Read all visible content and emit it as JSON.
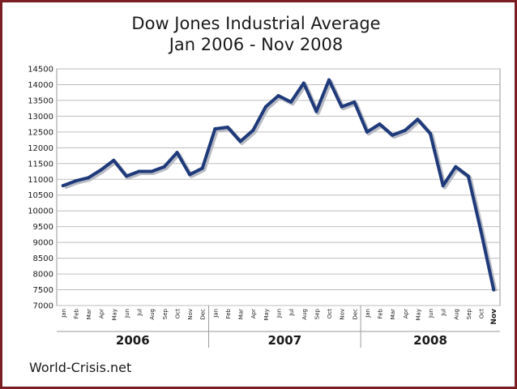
{
  "footer": "World-Crisis.net",
  "chart_data": {
    "type": "line",
    "title": "Dow Jones Industrial Average",
    "subtitle": "Jan 2006 - Nov 2008",
    "xlabel": "",
    "ylabel": "",
    "ylim": [
      7000,
      14500
    ],
    "yticks": [
      7000,
      7500,
      8000,
      8500,
      9000,
      9500,
      10000,
      10500,
      11000,
      11500,
      12000,
      12500,
      13000,
      13500,
      14000,
      14500
    ],
    "grid": true,
    "line_color": "#1f3a7a",
    "months": [
      "Jan",
      "Feb",
      "Mar",
      "Apr",
      "May",
      "Jun",
      "Jul",
      "Aug",
      "Sep",
      "Oct",
      "Nov",
      "Dec",
      "Jan",
      "Feb",
      "Mar",
      "Apr",
      "May",
      "Jun",
      "Jul",
      "Aug",
      "Sep",
      "Oct",
      "Nov",
      "Dec",
      "Jan",
      "Feb",
      "Mar",
      "Apr",
      "May",
      "Jun",
      "Jul",
      "Aug",
      "Sep",
      "Oct",
      "Nov"
    ],
    "years": [
      {
        "label": "2006",
        "months": 12
      },
      {
        "label": "2007",
        "months": 12
      },
      {
        "label": "2008",
        "months": 11
      }
    ],
    "series": [
      {
        "values": [
          10800,
          10950,
          11050,
          11300,
          11600,
          11100,
          11250,
          11250,
          11400,
          11850,
          11150,
          11350,
          12600,
          12650,
          12200,
          12550,
          13300,
          13650,
          13450,
          14050,
          13150,
          14150,
          13300,
          13450,
          12500,
          12750,
          12400,
          12550,
          12900,
          12450,
          10800,
          11400,
          11100,
          9350,
          7500
        ]
      }
    ]
  }
}
